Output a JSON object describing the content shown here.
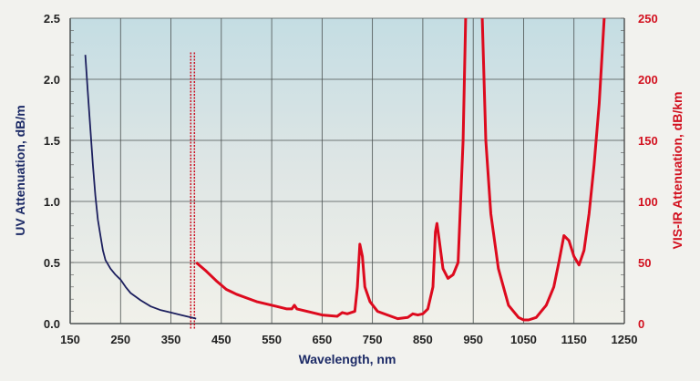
{
  "chart_data": {
    "type": "line",
    "title": "",
    "xlabel": "Wavelength, nm",
    "ylabel_left": "UV Attenuation, dB/m",
    "ylabel_right": "VIS-IR Attenuation, dB/km",
    "xlim": [
      150,
      1250
    ],
    "ylim_left": [
      0,
      2.5
    ],
    "ylim_right": [
      0,
      250
    ],
    "grid": true,
    "x_ticks": [
      "150",
      "250",
      "350",
      "450",
      "550",
      "650",
      "750",
      "850",
      "950",
      "1050",
      "1150",
      "1250"
    ],
    "y_ticks_left": [
      "0.0",
      "0.5",
      "1.0",
      "1.5",
      "2.0",
      "2.5"
    ],
    "y_ticks_right": [
      "0",
      "50",
      "100",
      "150",
      "200",
      "250"
    ],
    "colors": {
      "uv": "#1c1f5e",
      "visir": "#dd0a1e",
      "left_axis_text": "#1c2a66",
      "right_axis_text": "#d2101e",
      "divider": "#cc1122"
    },
    "divider_wavelength": 393,
    "series": [
      {
        "axis": "left",
        "color_key": "uv",
        "x": [
          180,
          185,
          190,
          195,
          200,
          205,
          210,
          215,
          220,
          230,
          240,
          250,
          260,
          270,
          290,
          310,
          330,
          350,
          370,
          390,
          400
        ],
        "y": [
          2.2,
          1.9,
          1.6,
          1.3,
          1.05,
          0.85,
          0.72,
          0.6,
          0.52,
          0.45,
          0.4,
          0.36,
          0.3,
          0.25,
          0.19,
          0.14,
          0.11,
          0.09,
          0.07,
          0.05,
          0.04
        ]
      },
      {
        "axis": "right",
        "color_key": "visir",
        "segments": [
          {
            "x": [
              400,
              420,
              440,
              460,
              480,
              500,
              520,
              540,
              560,
              580,
              590,
              595,
              600,
              620,
              650,
              680,
              690,
              700,
              715,
              720,
              725,
              730,
              735,
              745,
              760,
              780,
              800,
              820,
              830,
              840,
              850,
              860,
              870,
              875,
              878,
              882,
              890,
              900,
              910,
              920,
              930,
              935
            ],
            "y": [
              50,
              43,
              35,
              28,
              24,
              21,
              18,
              16,
              14,
              12,
              12,
              15,
              12,
              10,
              7,
              6,
              9,
              8,
              10,
              30,
              65,
              55,
              30,
              18,
              10,
              7,
              4,
              5,
              8,
              7,
              8,
              12,
              30,
              75,
              82,
              70,
              45,
              37,
              40,
              50,
              150,
              250
            ]
          },
          {
            "x": [
              968,
              975,
              985,
              1000,
              1020,
              1040,
              1050,
              1060,
              1075,
              1085,
              1095,
              1110,
              1120,
              1130,
              1140,
              1150,
              1160,
              1170,
              1180,
              1190,
              1200,
              1210
            ],
            "y": [
              250,
              150,
              90,
              45,
              15,
              5,
              3,
              3,
              5,
              10,
              15,
              30,
              50,
              72,
              68,
              55,
              48,
              60,
              90,
              130,
              180,
              250
            ]
          }
        ]
      }
    ]
  }
}
